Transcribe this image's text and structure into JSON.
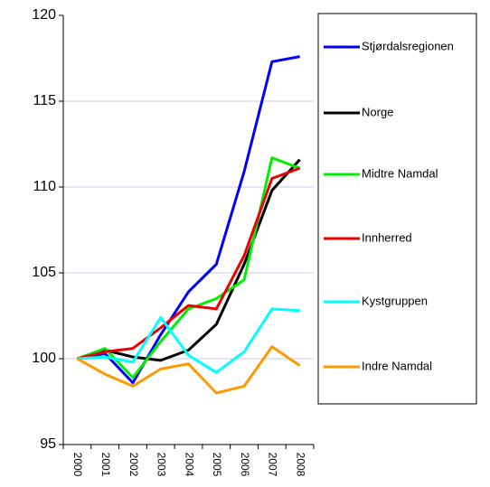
{
  "chart_data": {
    "type": "line",
    "categories": [
      "2000",
      "2001",
      "2002",
      "2003",
      "2004",
      "2005",
      "2006",
      "2007",
      "2008"
    ],
    "series": [
      {
        "name": "Stjørdalsregionen",
        "color": "#0000ff",
        "values": [
          100,
          100.3,
          98.6,
          101.4,
          103.9,
          105.5,
          110.9,
          117.3,
          117.6
        ]
      },
      {
        "name": "Norge",
        "color": "#000000",
        "values": [
          100,
          100.5,
          100.1,
          99.9,
          100.5,
          102,
          105.5,
          109.8,
          111.6
        ]
      },
      {
        "name": "Midtre Namdal",
        "color": "#00ee00",
        "values": [
          100,
          100.6,
          98.9,
          101,
          102.9,
          103.5,
          104.6,
          111.7,
          111.1
        ]
      },
      {
        "name": "Innherred",
        "color": "#ee0000",
        "values": [
          100,
          100.4,
          100.6,
          101.8,
          103.1,
          102.9,
          106,
          110.5,
          111.1
        ]
      },
      {
        "name": "Kystgruppen",
        "color": "#00ffff",
        "values": [
          100,
          100.1,
          99.8,
          102.4,
          100.2,
          99.2,
          100.4,
          102.9,
          102.8
        ]
      },
      {
        "name": "Indre Namdal",
        "color": "#ff9900",
        "values": [
          100,
          99.1,
          98.4,
          99.4,
          99.7,
          98,
          98.4,
          100.7,
          99.6
        ]
      }
    ],
    "ylim": [
      95,
      120
    ],
    "yticks": [
      95,
      100,
      105,
      110,
      115,
      120
    ],
    "grid": true,
    "legend": "right"
  }
}
